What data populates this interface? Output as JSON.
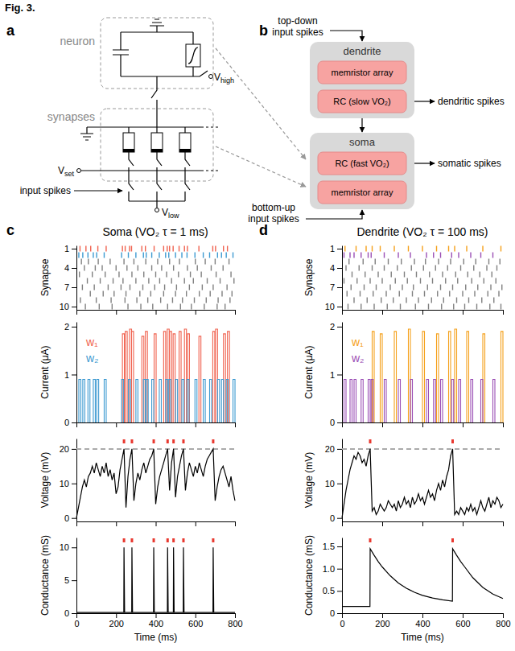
{
  "figure_label": "Fig. 3.",
  "diagram_a": {
    "letter": "a",
    "neuron_label": "neuron",
    "synapses_label": "synapses",
    "v_high": {
      "main": "V",
      "sub": "high"
    },
    "v_set": {
      "main": "V",
      "sub": "set"
    },
    "v_low": {
      "main": "V",
      "sub": "low"
    },
    "input_label": "input spikes"
  },
  "diagram_b": {
    "letter": "b",
    "top_input": [
      "top-down",
      "input spikes"
    ],
    "dendrite": {
      "title": "dendrite",
      "boxes": [
        "memristor array",
        "RC (slow VO₂)"
      ],
      "output": "dendritic spikes"
    },
    "soma": {
      "title": "soma",
      "boxes": [
        "RC (fast VO₂)",
        "memristor array"
      ],
      "output": "somatic spikes"
    },
    "bottom_input": [
      "bottom-up",
      "input spikes"
    ]
  },
  "panels": [
    {
      "letter": "c",
      "title": "Soma (VO₂ τ = 1 ms)"
    },
    {
      "letter": "d",
      "title": "Dendrite (VO₂ τ = 100 ms)"
    }
  ],
  "chart_data": [
    {
      "type": "raster",
      "y_label": "Synapse",
      "xlim": [
        0,
        800
      ],
      "xticks": [
        0,
        200,
        400,
        600,
        800
      ],
      "ylim": [
        10.5,
        0.5
      ],
      "yticks": [
        1,
        4,
        7,
        10
      ],
      "tick_labels": "y",
      "series": [
        {
          "y": 1,
          "color": "#f0624f",
          "x": [
            18,
            48,
            72,
            108,
            150,
            232,
            246,
            268,
            278,
            330,
            348,
            392,
            440,
            458,
            470,
            488,
            518,
            545,
            560,
            618,
            688,
            702,
            742,
            762
          ]
        },
        {
          "y": 2,
          "color": "#3d9ad1",
          "x": [
            12,
            32,
            58,
            85,
            102,
            140,
            228,
            262,
            300,
            338,
            352,
            380,
            418,
            450,
            466,
            500,
            532,
            558,
            598,
            640,
            672,
            712,
            732,
            756,
            790
          ]
        },
        {
          "y": 3,
          "color": "#808080",
          "x": [
            25,
            60,
            110,
            170,
            240,
            290,
            350,
            410,
            470,
            520,
            600,
            650,
            700,
            770
          ]
        },
        {
          "y": 4,
          "color": "#808080",
          "x": [
            40,
            95,
            130,
            200,
            255,
            310,
            380,
            430,
            490,
            560,
            610,
            680,
            740
          ]
        },
        {
          "y": 5,
          "color": "#808080",
          "x": [
            15,
            80,
            145,
            215,
            280,
            340,
            400,
            455,
            515,
            575,
            630,
            705,
            780
          ]
        },
        {
          "y": 6,
          "color": "#808080",
          "x": [
            55,
            120,
            185,
            235,
            300,
            365,
            420,
            480,
            545,
            590,
            660,
            725,
            795
          ]
        },
        {
          "y": 7,
          "color": "#808080",
          "x": [
            30,
            90,
            160,
            225,
            270,
            335,
            395,
            445,
            505,
            570,
            635,
            690,
            760
          ]
        },
        {
          "y": 8,
          "color": "#808080",
          "x": [
            70,
            135,
            190,
            250,
            320,
            375,
            440,
            500,
            555,
            620,
            675,
            735,
            785
          ]
        },
        {
          "y": 9,
          "color": "#808080",
          "x": [
            20,
            100,
            175,
            245,
            305,
            360,
            425,
            485,
            535,
            595,
            655,
            715,
            775
          ]
        },
        {
          "y": 10,
          "color": "#808080",
          "x": [
            45,
            115,
            180,
            260,
            325,
            385,
            460,
            525,
            580,
            645,
            710,
            750
          ]
        }
      ]
    },
    {
      "type": "pulse",
      "y_label": "Current (μA)",
      "xlim": [
        0,
        800
      ],
      "xticks": [
        0,
        200,
        400,
        600,
        800
      ],
      "ylim": [
        0,
        2.1
      ],
      "yticks": [
        0,
        1,
        2
      ],
      "tick_labels": "y",
      "legend": "upper left",
      "series": [
        {
          "name": "w₁",
          "color": "#f0624f",
          "x": [
            232,
            246,
            268,
            278,
            330,
            348,
            392,
            440,
            458,
            470,
            488,
            518,
            545,
            560,
            618,
            688,
            702,
            742,
            762
          ],
          "values": [
            1.85,
            1.9,
            1.95,
            1.9,
            1.8,
            1.9,
            1.85,
            1.9,
            1.95,
            1.9,
            1.85,
            1.9,
            1.95,
            1.85,
            1.8,
            1.9,
            1.95,
            1.85,
            1.9
          ]
        },
        {
          "name": "w₂",
          "color": "#3d9ad1",
          "x": [
            12,
            32,
            58,
            85,
            102,
            140,
            228,
            262,
            300,
            338,
            352,
            380,
            418,
            450,
            466,
            500,
            532,
            558,
            598,
            640,
            672,
            712,
            732,
            756,
            790
          ],
          "values": [
            0.9,
            0.9,
            0.9,
            0.9,
            0.9,
            0.9,
            0.9,
            0.9,
            0.9,
            0.9,
            0.9,
            0.9,
            0.9,
            0.9,
            0.9,
            0.9,
            0.9,
            0.9,
            0.9,
            0.9,
            0.9,
            0.9,
            0.9,
            0.9,
            0.9
          ]
        }
      ]
    },
    {
      "type": "line",
      "y_label": "Voltage (mV)",
      "xlim": [
        0,
        800
      ],
      "xticks": [
        0,
        200,
        400,
        600,
        800
      ],
      "ylim": [
        -1,
        23
      ],
      "yticks": [
        0,
        10,
        20
      ],
      "tick_labels": "y",
      "color": "#000000",
      "threshold": 20,
      "spikes": [
        240,
        280,
        390,
        460,
        490,
        540,
        690
      ],
      "x": [
        0,
        10,
        20,
        30,
        40,
        50,
        60,
        70,
        80,
        90,
        100,
        110,
        120,
        130,
        140,
        150,
        160,
        170,
        180,
        190,
        200,
        210,
        220,
        230,
        240,
        250,
        260,
        270,
        280,
        290,
        300,
        310,
        320,
        330,
        340,
        350,
        360,
        370,
        380,
        390,
        400,
        410,
        420,
        430,
        440,
        450,
        460,
        470,
        480,
        490,
        500,
        510,
        520,
        530,
        540,
        550,
        560,
        570,
        580,
        590,
        600,
        610,
        620,
        630,
        640,
        650,
        660,
        670,
        680,
        690,
        700,
        710,
        720,
        730,
        740,
        750,
        760,
        770,
        780,
        790,
        800
      ],
      "values": [
        0,
        3,
        6,
        9,
        11,
        9,
        12,
        13,
        15,
        13,
        16,
        14,
        12,
        15,
        13,
        16,
        12,
        14,
        11,
        13,
        7,
        9,
        14,
        17,
        20,
        3,
        12,
        17,
        20,
        5,
        10,
        13,
        11,
        14,
        16,
        13,
        15,
        17,
        18,
        20,
        4,
        9,
        12,
        14,
        16,
        18,
        20,
        8,
        16,
        20,
        6,
        12,
        15,
        18,
        20,
        8,
        13,
        16,
        14,
        12,
        15,
        13,
        16,
        14,
        12,
        15,
        17,
        18,
        19,
        20,
        5,
        9,
        12,
        14,
        15,
        13,
        11,
        9,
        12,
        8,
        5
      ]
    },
    {
      "type": "line",
      "x_label": "Time (ms)",
      "y_label": "Conductance (mS)",
      "xlim": [
        0,
        800
      ],
      "xticks": [
        0,
        200,
        400,
        600,
        800
      ],
      "ylim": [
        0,
        11.5
      ],
      "yticks": [
        0,
        5,
        10
      ],
      "color": "#000000",
      "spikes": [
        240,
        280,
        390,
        460,
        490,
        540,
        690
      ],
      "x": [
        0,
        239,
        240,
        243,
        279,
        280,
        283,
        389,
        390,
        393,
        459,
        460,
        463,
        489,
        490,
        493,
        539,
        540,
        543,
        689,
        690,
        693,
        800
      ],
      "values": [
        0.1,
        0.1,
        10,
        0.1,
        0.1,
        10,
        0.1,
        0.1,
        10,
        0.1,
        0.1,
        10,
        0.1,
        0.1,
        10,
        0.1,
        0.1,
        10,
        0.1,
        0.1,
        10,
        0.1,
        0.1
      ]
    },
    {
      "type": "raster",
      "y_label": "Synapse",
      "xlim": [
        0,
        800
      ],
      "xticks": [
        0,
        200,
        400,
        600,
        800
      ],
      "ylim": [
        10.5,
        0.5
      ],
      "yticks": [
        1,
        4,
        7,
        10
      ],
      "tick_labels": "y",
      "series": [
        {
          "y": 1,
          "color": "#f5a01a",
          "x": [
            15,
            70,
            120,
            150,
            190,
            260,
            330,
            400,
            470,
            530,
            560,
            620,
            700,
            790
          ]
        },
        {
          "y": 2,
          "color": "#9b4fb5",
          "x": [
            10,
            40,
            60,
            95,
            130,
            145,
            210,
            280,
            340,
            420,
            455,
            490,
            545,
            580,
            640,
            690,
            750
          ]
        },
        {
          "y": 3,
          "color": "#808080",
          "x": [
            35,
            105,
            165,
            230,
            295,
            360,
            415,
            480,
            540,
            605,
            665,
            730,
            785
          ]
        },
        {
          "y": 4,
          "color": "#808080",
          "x": [
            20,
            85,
            150,
            210,
            275,
            345,
            405,
            465,
            525,
            590,
            655,
            720,
            770
          ]
        },
        {
          "y": 5,
          "color": "#808080",
          "x": [
            50,
            115,
            180,
            245,
            310,
            370,
            435,
            500,
            565,
            625,
            685,
            745
          ]
        },
        {
          "y": 6,
          "color": "#808080",
          "x": [
            10,
            75,
            140,
            200,
            265,
            325,
            390,
            450,
            515,
            575,
            645,
            705,
            765
          ]
        },
        {
          "y": 7,
          "color": "#808080",
          "x": [
            45,
            110,
            170,
            240,
            300,
            355,
            425,
            490,
            550,
            615,
            675,
            740,
            795
          ]
        },
        {
          "y": 8,
          "color": "#808080",
          "x": [
            25,
            90,
            155,
            220,
            285,
            350,
            410,
            475,
            535,
            600,
            660,
            725,
            780
          ]
        },
        {
          "y": 9,
          "color": "#808080",
          "x": [
            60,
            125,
            195,
            255,
            320,
            380,
            445,
            505,
            570,
            630,
            695,
            755
          ]
        },
        {
          "y": 10,
          "color": "#808080",
          "x": [
            30,
            95,
            160,
            225,
            290,
            365,
            430,
            495,
            555,
            610,
            670,
            735,
            790
          ]
        }
      ]
    },
    {
      "type": "pulse",
      "y_label": "Current (μA)",
      "xlim": [
        0,
        800
      ],
      "xticks": [
        0,
        200,
        400,
        600,
        800
      ],
      "ylim": [
        0,
        2.1
      ],
      "yticks": [
        0,
        1,
        2
      ],
      "tick_labels": "y",
      "legend": "upper left",
      "series": [
        {
          "name": "w₁",
          "color": "#f5a01a",
          "x": [
            150,
            190,
            260,
            330,
            400,
            470,
            530,
            560,
            620,
            700,
            790
          ],
          "values": [
            1.9,
            1.85,
            1.9,
            1.95,
            1.9,
            1.85,
            1.9,
            1.95,
            1.9,
            1.85,
            1.9
          ]
        },
        {
          "name": "w₂",
          "color": "#9b4fb5",
          "x": [
            10,
            40,
            60,
            95,
            130,
            145,
            210,
            280,
            340,
            420,
            455,
            490,
            545,
            580,
            640,
            690,
            750
          ],
          "values": [
            0.9,
            0.9,
            0.9,
            0.9,
            0.9,
            0.9,
            0.9,
            0.9,
            0.9,
            0.9,
            0.9,
            0.9,
            0.9,
            0.9,
            0.9,
            0.9,
            0.9
          ]
        }
      ]
    },
    {
      "type": "line",
      "y_label": "Voltage (mV)",
      "xlim": [
        0,
        800
      ],
      "xticks": [
        0,
        200,
        400,
        600,
        800
      ],
      "ylim": [
        -1,
        23
      ],
      "yticks": [
        0,
        10,
        20
      ],
      "tick_labels": "y",
      "color": "#000000",
      "threshold": 20,
      "spikes": [
        140,
        550
      ],
      "x": [
        0,
        10,
        20,
        30,
        40,
        50,
        60,
        70,
        80,
        90,
        100,
        110,
        120,
        130,
        140,
        150,
        160,
        170,
        180,
        190,
        200,
        210,
        220,
        230,
        240,
        250,
        260,
        270,
        280,
        290,
        300,
        310,
        320,
        330,
        340,
        350,
        360,
        370,
        380,
        390,
        400,
        410,
        420,
        430,
        440,
        450,
        460,
        470,
        480,
        490,
        500,
        510,
        520,
        530,
        540,
        550,
        560,
        570,
        580,
        590,
        600,
        610,
        620,
        630,
        640,
        650,
        660,
        670,
        680,
        690,
        700,
        710,
        720,
        730,
        740,
        750,
        760,
        770,
        780,
        790,
        800
      ],
      "values": [
        0,
        4,
        8,
        11,
        14,
        16,
        18,
        17,
        19,
        18,
        16,
        17,
        15,
        18,
        20,
        2,
        3,
        1,
        2,
        4,
        3,
        2,
        3,
        5,
        4,
        3,
        4,
        2,
        5,
        3,
        4,
        6,
        4,
        5,
        3,
        6,
        4,
        5,
        7,
        5,
        6,
        4,
        6,
        8,
        6,
        7,
        5,
        8,
        10,
        8,
        11,
        9,
        12,
        14,
        18,
        20,
        1,
        2,
        1,
        3,
        2,
        1,
        3,
        2,
        4,
        2,
        3,
        1,
        3,
        5,
        3,
        2,
        4,
        6,
        3,
        5,
        4,
        6,
        5,
        3,
        4
      ]
    },
    {
      "type": "line",
      "x_label": "Time (ms)",
      "y_label": "Conductance (mS)",
      "xlim": [
        0,
        800
      ],
      "xticks": [
        0,
        200,
        400,
        600,
        800
      ],
      "ylim": [
        0,
        1.7
      ],
      "yticks": [
        0,
        0.5,
        {
          "value": 1,
          "label": "1.0"
        },
        1.5
      ],
      "color": "#000000",
      "spikes": [
        140,
        550
      ],
      "x": [
        0,
        139,
        140,
        160,
        180,
        200,
        240,
        280,
        320,
        360,
        400,
        450,
        500,
        549,
        550,
        570,
        590,
        610,
        650,
        700,
        750,
        800
      ],
      "values": [
        0.15,
        0.15,
        1.45,
        1.3,
        1.16,
        1.04,
        0.84,
        0.68,
        0.56,
        0.47,
        0.4,
        0.34,
        0.3,
        0.27,
        1.45,
        1.3,
        1.16,
        1.04,
        0.8,
        0.58,
        0.43,
        0.33
      ]
    }
  ]
}
